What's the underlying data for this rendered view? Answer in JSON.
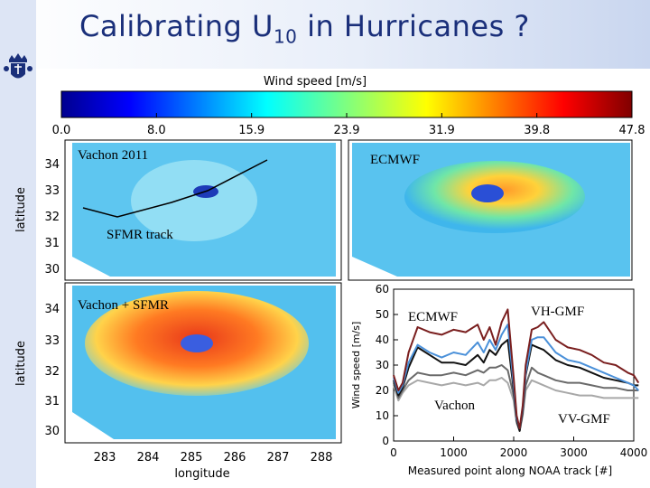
{
  "slide": {
    "title_prefix": "Calibrating U",
    "title_sub": "10",
    "title_suffix": " in Hurricanes ?"
  },
  "colorbar": {
    "title": "Wind speed [m/s]",
    "ticks": [
      "0.0",
      "8.0",
      "15.9",
      "23.9",
      "31.9",
      "39.8",
      "47.8"
    ],
    "range": [
      0.0,
      47.8
    ]
  },
  "maps": {
    "top_left_label": "Vachon 2011",
    "sfmr_label": "SFMR track",
    "top_right_label": "ECMWF",
    "bottom_left_label": "Vachon + SFMR",
    "latitude_label": "latitude",
    "longitude_label": "longitude",
    "lat_ticks_top": [
      "34",
      "33",
      "32",
      "31",
      "30"
    ],
    "lat_ticks_bottom": [
      "34",
      "33",
      "32",
      "31",
      "30"
    ],
    "lon_ticks": [
      "283",
      "284",
      "285",
      "286",
      "287",
      "288"
    ]
  },
  "chart_data": {
    "type": "line",
    "xlabel": "Measured point along NOAA track [#]",
    "ylabel": "Wind speed [m/s]",
    "xlim": [
      0,
      4000
    ],
    "ylim": [
      0,
      60
    ],
    "x_ticks": [
      "0",
      "1000",
      "2000",
      "3000",
      "4000"
    ],
    "y_ticks": [
      "0",
      "10",
      "20",
      "30",
      "40",
      "50",
      "60"
    ],
    "annotations": [
      "ECMWF",
      "VH-GMF",
      "Vachon",
      "VV-GMF"
    ],
    "series": [
      {
        "name": "VH-GMF",
        "color": "#7a1f1f",
        "x": [
          0,
          80,
          150,
          250,
          400,
          600,
          800,
          1000,
          1200,
          1400,
          1500,
          1600,
          1700,
          1800,
          1900,
          2000,
          2050,
          2100,
          2150,
          2200,
          2300,
          2400,
          2500,
          2700,
          2900,
          3100,
          3300,
          3500,
          3700,
          3900,
          4000,
          4080
        ],
        "y": [
          26,
          20,
          23,
          35,
          45,
          43,
          42,
          44,
          43,
          46,
          40,
          45,
          38,
          47,
          52,
          25,
          10,
          5,
          14,
          30,
          44,
          45,
          47,
          40,
          37,
          36,
          34,
          31,
          30,
          27,
          26,
          23
        ]
      },
      {
        "name": "Light blue",
        "color": "#4a90d9",
        "x": [
          0,
          80,
          150,
          250,
          400,
          600,
          800,
          1000,
          1200,
          1400,
          1500,
          1600,
          1700,
          1800,
          1900,
          2000,
          2050,
          2100,
          2150,
          2200,
          2300,
          2400,
          2500,
          2700,
          2900,
          3100,
          3300,
          3500,
          3700,
          3900,
          4000,
          4080
        ],
        "y": [
          25,
          19,
          22,
          31,
          38,
          35,
          33,
          35,
          34,
          39,
          35,
          40,
          36,
          42,
          46,
          22,
          9,
          5,
          13,
          27,
          40,
          41,
          41,
          35,
          32,
          31,
          29,
          27,
          25,
          23,
          22,
          20
        ]
      },
      {
        "name": "Black",
        "color": "#111111",
        "x": [
          0,
          80,
          150,
          250,
          400,
          600,
          800,
          1000,
          1200,
          1400,
          1500,
          1600,
          1700,
          1800,
          1900,
          2000,
          2050,
          2100,
          2150,
          2200,
          2300,
          2400,
          2500,
          2700,
          2900,
          3100,
          3300,
          3500,
          3700,
          3900,
          4000,
          4080
        ],
        "y": [
          24,
          18,
          21,
          29,
          37,
          34,
          31,
          31,
          30,
          34,
          31,
          36,
          34,
          38,
          40,
          20,
          8,
          4,
          12,
          26,
          38,
          37,
          36,
          32,
          30,
          29,
          27,
          25,
          24,
          23,
          22,
          22
        ]
      },
      {
        "name": "Vachon",
        "color": "#6a6a6a",
        "x": [
          0,
          80,
          150,
          250,
          400,
          600,
          800,
          1000,
          1200,
          1400,
          1500,
          1600,
          1700,
          1800,
          1900,
          2000,
          2050,
          2100,
          2150,
          2200,
          2300,
          2400,
          2500,
          2700,
          2900,
          3100,
          3300,
          3500,
          3700,
          3900,
          4000,
          4080
        ],
        "y": [
          23,
          17,
          20,
          24,
          27,
          26,
          26,
          27,
          26,
          28,
          27,
          29,
          29,
          30,
          28,
          18,
          8,
          4,
          11,
          22,
          29,
          27,
          26,
          24,
          23,
          23,
          22,
          21,
          21,
          20,
          20,
          20
        ]
      },
      {
        "name": "VV-GMF",
        "color": "#a8a8a8",
        "x": [
          0,
          80,
          150,
          250,
          400,
          600,
          800,
          1000,
          1200,
          1400,
          1500,
          1600,
          1700,
          1800,
          1900,
          2000,
          2050,
          2100,
          2150,
          2200,
          2300,
          2400,
          2500,
          2700,
          2900,
          3100,
          3300,
          3500,
          3700,
          3900,
          4000,
          4080
        ],
        "y": [
          22,
          16,
          19,
          22,
          24,
          23,
          22,
          23,
          22,
          23,
          22,
          24,
          24,
          25,
          23,
          16,
          7,
          4,
          10,
          20,
          24,
          23,
          22,
          20,
          19,
          18,
          18,
          17,
          17,
          17,
          17,
          17
        ]
      }
    ]
  }
}
